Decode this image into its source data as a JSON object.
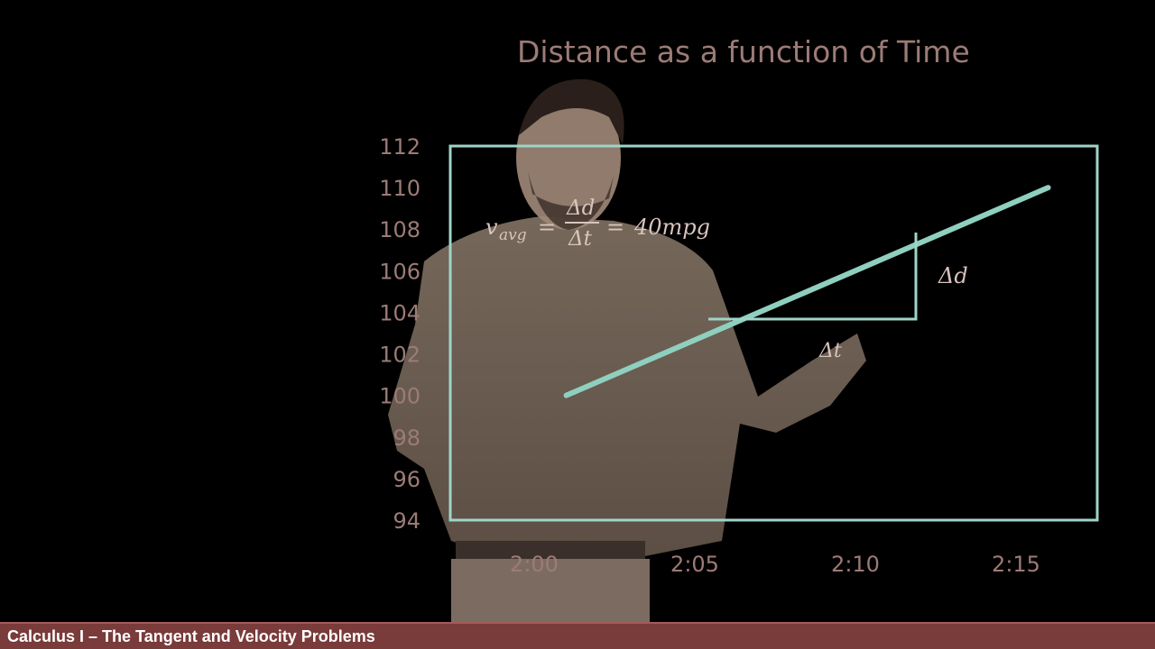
{
  "chart_data": {
    "type": "line",
    "title": "Distance as a function of Time",
    "y_ticks": [
      "112",
      "110",
      "108",
      "106",
      "104",
      "102",
      "100",
      "98",
      "96",
      "94"
    ],
    "x_ticks": [
      "2:00",
      "2:05",
      "2:10",
      "2:15"
    ],
    "series": [
      {
        "x": [
          "2:01",
          "2:16"
        ],
        "y": [
          100,
          110
        ]
      }
    ],
    "annotations": {
      "formula": "v_avg = Δd / Δt = 40mpg",
      "delta_d": "Δd",
      "delta_t": "Δt"
    },
    "line_color": "#8fcfbf",
    "box_color": "#9fd4c8"
  },
  "footer": {
    "caption": "Calculus I – The Tangent and Velocity Problems"
  },
  "colors": {
    "footer_bg": "#7a3b3b",
    "label_color": "#9c7b76"
  }
}
